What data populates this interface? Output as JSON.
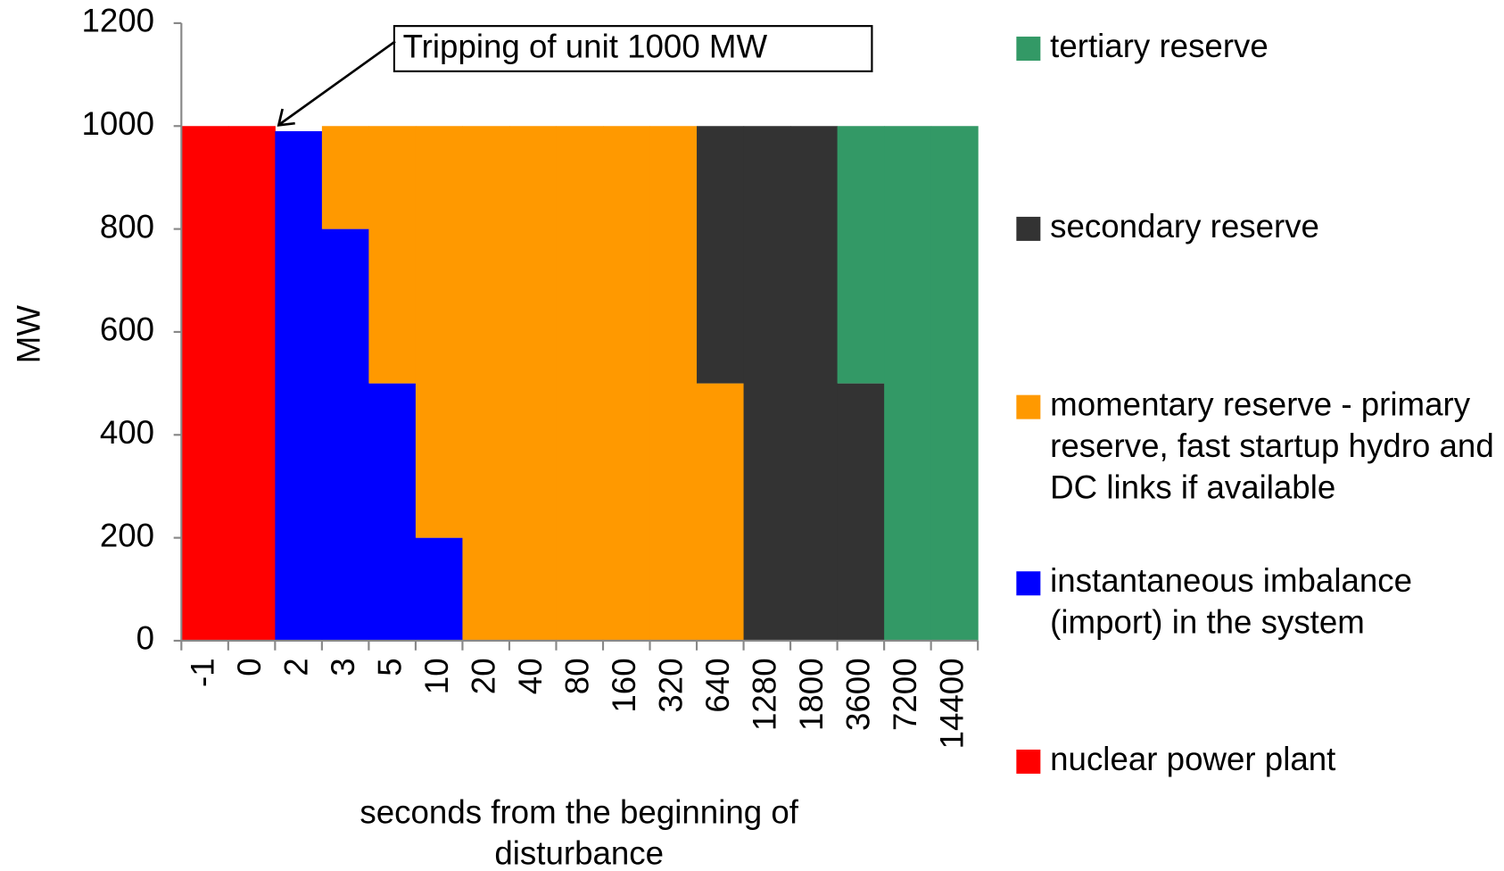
{
  "chart_data": {
    "type": "stacked_bar",
    "annotation": "Tripping of unit 1000 MW",
    "y_label": "MW",
    "x_label": "seconds from the beginning of disturbance",
    "categories": [
      "-1",
      "0",
      "2",
      "3",
      "5",
      "10",
      "20",
      "40",
      "80",
      "160",
      "320",
      "640",
      "1280",
      "1800",
      "3600",
      "7200",
      "14400"
    ],
    "series": [
      {
        "name": "nuclear power plant",
        "color": "#ff0000",
        "values": [
          1000,
          1000,
          0,
          0,
          0,
          0,
          0,
          0,
          0,
          0,
          0,
          0,
          0,
          0,
          0,
          0,
          0
        ]
      },
      {
        "name": "instantaneous imbalance (import) in the system",
        "color": "#0000ff",
        "values": [
          0,
          0,
          990,
          800,
          500,
          200,
          0,
          0,
          0,
          0,
          0,
          0,
          0,
          0,
          0,
          0,
          0
        ]
      },
      {
        "name": "momentary reserve - primary reserve, fast startup hydro and DC links if available",
        "color": "#ff9900",
        "values": [
          0,
          0,
          0,
          200,
          500,
          800,
          1000,
          1000,
          1000,
          1000,
          1000,
          500,
          0,
          0,
          0,
          0,
          0
        ]
      },
      {
        "name": "secondary reserve",
        "color": "#333333",
        "values": [
          0,
          0,
          0,
          0,
          0,
          0,
          0,
          0,
          0,
          0,
          0,
          500,
          1000,
          1000,
          500,
          0,
          0
        ]
      },
      {
        "name": "tertiary reserve",
        "color": "#339966",
        "values": [
          0,
          0,
          0,
          0,
          0,
          0,
          0,
          0,
          0,
          0,
          0,
          0,
          0,
          0,
          500,
          1000,
          1000
        ]
      }
    ],
    "ylim": [
      0,
      1200
    ],
    "yticks": [
      0,
      200,
      400,
      600,
      800,
      1000,
      1200
    ]
  }
}
